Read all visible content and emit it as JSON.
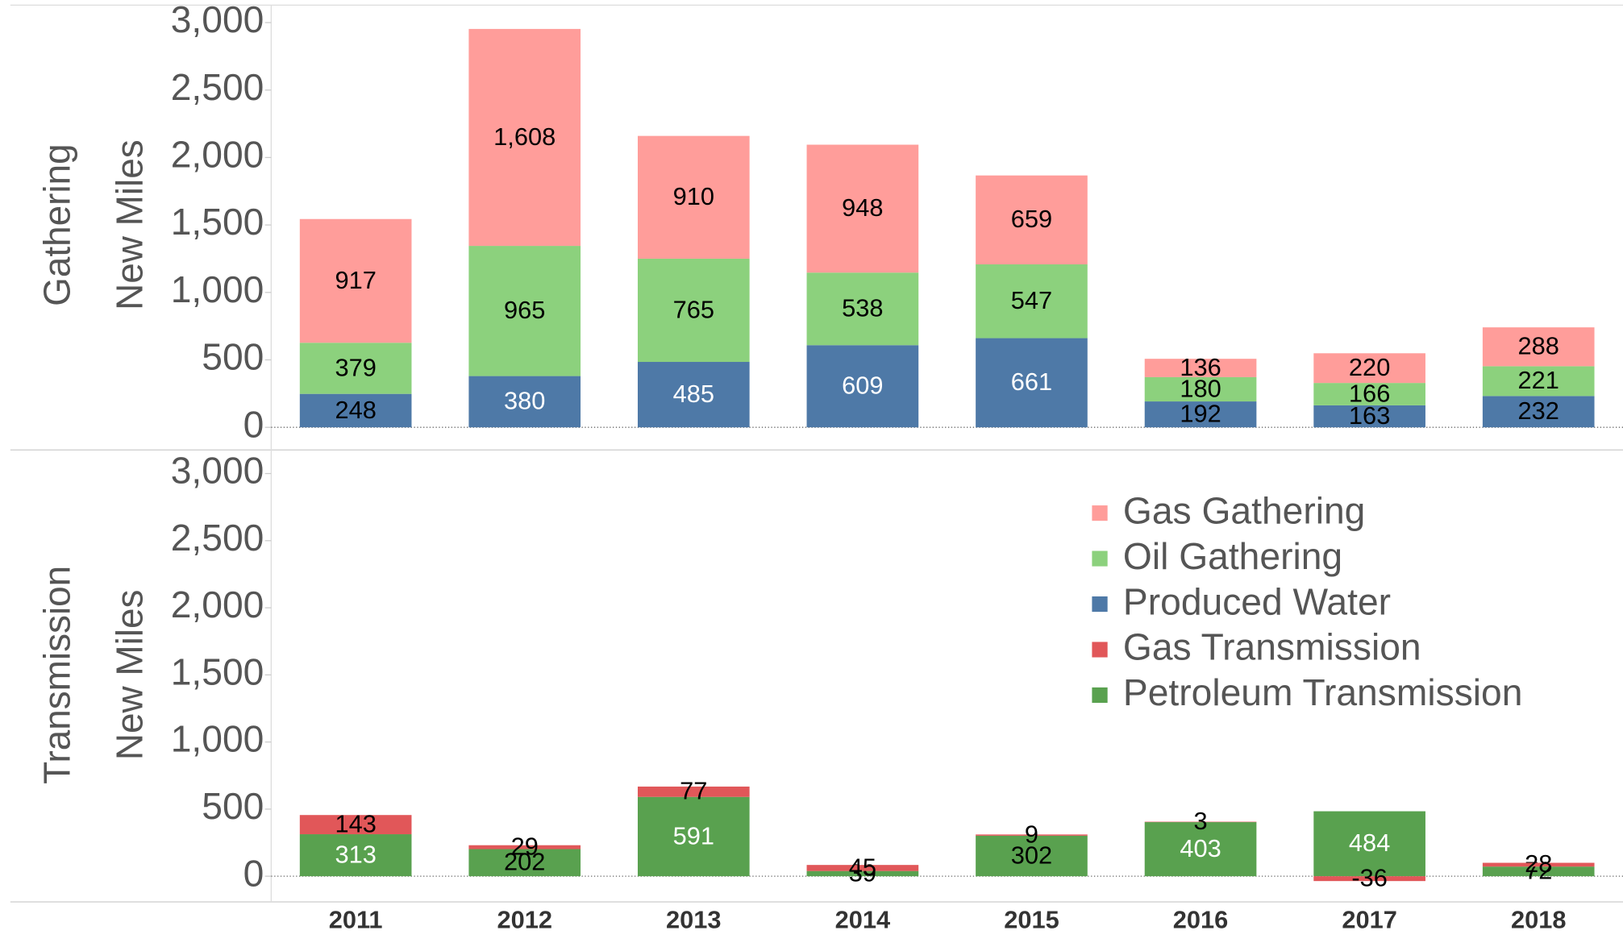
{
  "chart_data": [
    {
      "type": "bar",
      "stacked": true,
      "panel_label": "Gathering",
      "ylabel": "New Miles",
      "ylim": [
        0,
        3000
      ],
      "yticks": [
        0,
        500,
        {
          "value": 1000,
          "label": "1,000"
        },
        {
          "value": 1500,
          "label": "1,500"
        },
        {
          "value": 2000,
          "label": "2,000"
        },
        {
          "value": 2500,
          "label": "2,500"
        },
        {
          "value": 3000,
          "label": "3,000"
        }
      ],
      "series": [
        {
          "name": "Produced Water",
          "color": "#4e79a7",
          "values": [
            248,
            380,
            485,
            609,
            661,
            192,
            163,
            232
          ]
        },
        {
          "name": "Oil Gathering",
          "color": "#8cd17d",
          "values": [
            379,
            965,
            765,
            538,
            547,
            180,
            166,
            221
          ]
        },
        {
          "name": "Gas Gathering",
          "color": "#ff9d9a",
          "values": [
            917,
            1608,
            910,
            948,
            659,
            136,
            220,
            288
          ],
          "value_labels": [
            "917",
            "1,608",
            "910",
            "948",
            "659",
            "136",
            "220",
            "288"
          ]
        }
      ]
    },
    {
      "type": "bar",
      "stacked": true,
      "panel_label": "Transmission",
      "ylabel": "New Miles",
      "categories": [
        "2011",
        "2012",
        "2013",
        "2014",
        "2015",
        "2016",
        "2017",
        "2018"
      ],
      "ylim": [
        0,
        3000
      ],
      "yticks": [
        0,
        500,
        {
          "value": 1000,
          "label": "1,000"
        },
        {
          "value": 1500,
          "label": "1,500"
        },
        {
          "value": 2000,
          "label": "2,000"
        },
        {
          "value": 2500,
          "label": "2,500"
        },
        {
          "value": 3000,
          "label": "3,000"
        }
      ],
      "legend": "upper right",
      "series": [
        {
          "name": "Petroleum Transmission",
          "color": "#59a14f",
          "values": [
            313,
            202,
            591,
            39,
            302,
            403,
            484,
            72
          ]
        },
        {
          "name": "Gas Transmission",
          "color": "#e15759",
          "values": [
            143,
            29,
            77,
            45,
            9,
            3,
            -36,
            28
          ]
        }
      ]
    }
  ]
}
